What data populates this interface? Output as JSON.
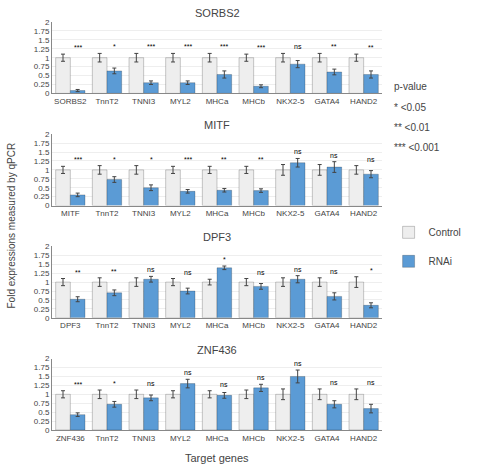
{
  "chart_data": [
    {
      "type": "bar",
      "title": "SORBS2",
      "categories": [
        "SORBS2",
        "TnnT2",
        "TNNI3",
        "MYL2",
        "MHCa",
        "MHCb",
        "NKX2-5",
        "GATA4",
        "HAND2"
      ],
      "series": [
        {
          "name": "Control",
          "color": "#eeeeee",
          "values": [
            1.0,
            1.0,
            1.0,
            1.0,
            1.0,
            1.0,
            1.0,
            1.0,
            1.0
          ],
          "errors": [
            0.1,
            0.12,
            0.12,
            0.12,
            0.12,
            0.1,
            0.12,
            0.12,
            0.1
          ]
        },
        {
          "name": "RNAi",
          "color": "#5b9bd5",
          "values": [
            0.08,
            0.63,
            0.3,
            0.3,
            0.53,
            0.2,
            0.82,
            0.6,
            0.53
          ],
          "errors": [
            0.03,
            0.08,
            0.05,
            0.05,
            0.1,
            0.04,
            0.1,
            0.08,
            0.1
          ]
        }
      ],
      "annotations": [
        "***",
        "*",
        "***",
        "***",
        "***",
        "***",
        "ns",
        "**",
        "**"
      ],
      "ylim": [
        0,
        2
      ],
      "yticks": [
        0,
        0.25,
        0.5,
        0.75,
        1,
        1.25,
        1.5,
        1.75,
        2
      ],
      "grid": true
    },
    {
      "type": "bar",
      "title": "MITF",
      "categories": [
        "MITF",
        "TnnT2",
        "TNNI3",
        "MYL2",
        "MHCa",
        "MHCb",
        "NKX2-5",
        "GATA4",
        "HAND2"
      ],
      "series": [
        {
          "name": "Control",
          "color": "#eeeeee",
          "values": [
            1.0,
            1.0,
            1.0,
            1.0,
            1.0,
            1.0,
            1.0,
            1.0,
            1.0
          ],
          "errors": [
            0.1,
            0.12,
            0.12,
            0.1,
            0.1,
            0.1,
            0.15,
            0.15,
            0.12
          ]
        },
        {
          "name": "RNAi",
          "color": "#5b9bd5",
          "values": [
            0.3,
            0.73,
            0.5,
            0.4,
            0.43,
            0.42,
            1.2,
            1.08,
            0.88
          ],
          "errors": [
            0.05,
            0.08,
            0.08,
            0.05,
            0.05,
            0.05,
            0.12,
            0.15,
            0.1
          ]
        }
      ],
      "annotations": [
        "***",
        "*",
        "*",
        "***",
        "**",
        "**",
        "ns",
        "ns",
        "ns"
      ],
      "ylim": [
        0,
        2
      ],
      "yticks": [
        0,
        0.25,
        0.5,
        0.75,
        1,
        1.25,
        1.5,
        1.75,
        2
      ],
      "grid": true
    },
    {
      "type": "bar",
      "title": "DPF3",
      "categories": [
        "DPF3",
        "TnnT2",
        "TNNI3",
        "MYL2",
        "MHCa",
        "MHCb",
        "NKX2-5",
        "GATA4",
        "HAND2"
      ],
      "series": [
        {
          "name": "Control",
          "color": "#eeeeee",
          "values": [
            1.0,
            1.0,
            1.0,
            1.0,
            1.0,
            1.0,
            1.0,
            1.0,
            1.0
          ],
          "errors": [
            0.1,
            0.12,
            0.12,
            0.1,
            0.08,
            0.1,
            0.12,
            0.12,
            0.15
          ]
        },
        {
          "name": "RNAi",
          "color": "#5b9bd5",
          "values": [
            0.52,
            0.7,
            1.08,
            0.75,
            1.4,
            0.88,
            1.08,
            0.6,
            0.35
          ],
          "errors": [
            0.07,
            0.08,
            0.08,
            0.08,
            0.05,
            0.08,
            0.1,
            0.1,
            0.07
          ]
        }
      ],
      "annotations": [
        "**",
        "**",
        "ns",
        "ns",
        "*",
        "ns",
        "ns",
        "ns",
        "*"
      ],
      "ylim": [
        0,
        2
      ],
      "yticks": [
        0,
        0.25,
        0.5,
        0.75,
        1,
        1.25,
        1.5,
        1.75,
        2
      ],
      "grid": true
    },
    {
      "type": "bar",
      "title": "ZNF436",
      "categories": [
        "ZNF436",
        "TnnT2",
        "TNNI3",
        "MYL2",
        "MHCa",
        "MHCb",
        "NKX2-5",
        "GATA4",
        "HAND2"
      ],
      "series": [
        {
          "name": "Control",
          "color": "#eeeeee",
          "values": [
            1.0,
            1.0,
            1.0,
            1.0,
            1.0,
            1.0,
            1.0,
            1.0,
            1.0
          ],
          "errors": [
            0.1,
            0.12,
            0.12,
            0.1,
            0.1,
            0.12,
            0.15,
            0.15,
            0.15
          ]
        },
        {
          "name": "RNAi",
          "color": "#5b9bd5",
          "values": [
            0.43,
            0.72,
            0.9,
            1.3,
            0.97,
            1.18,
            1.5,
            0.72,
            0.6
          ],
          "errors": [
            0.05,
            0.08,
            0.08,
            0.12,
            0.08,
            0.1,
            0.18,
            0.1,
            0.12
          ]
        }
      ],
      "annotations": [
        "***",
        "*",
        "ns",
        "ns",
        "ns",
        "ns",
        "ns",
        "ns",
        "ns"
      ],
      "ylim": [
        0,
        2
      ],
      "yticks": [
        0,
        0.25,
        0.5,
        0.75,
        1,
        1.25,
        1.5,
        1.75,
        2
      ],
      "grid": true
    }
  ],
  "xlabel": "Target genes",
  "ylabel": "Fold expressions measured by qPCR",
  "annotations": [
    "p-value",
    "* <0.05",
    "** <0.01",
    "*** <0.001"
  ],
  "legend": "right"
}
